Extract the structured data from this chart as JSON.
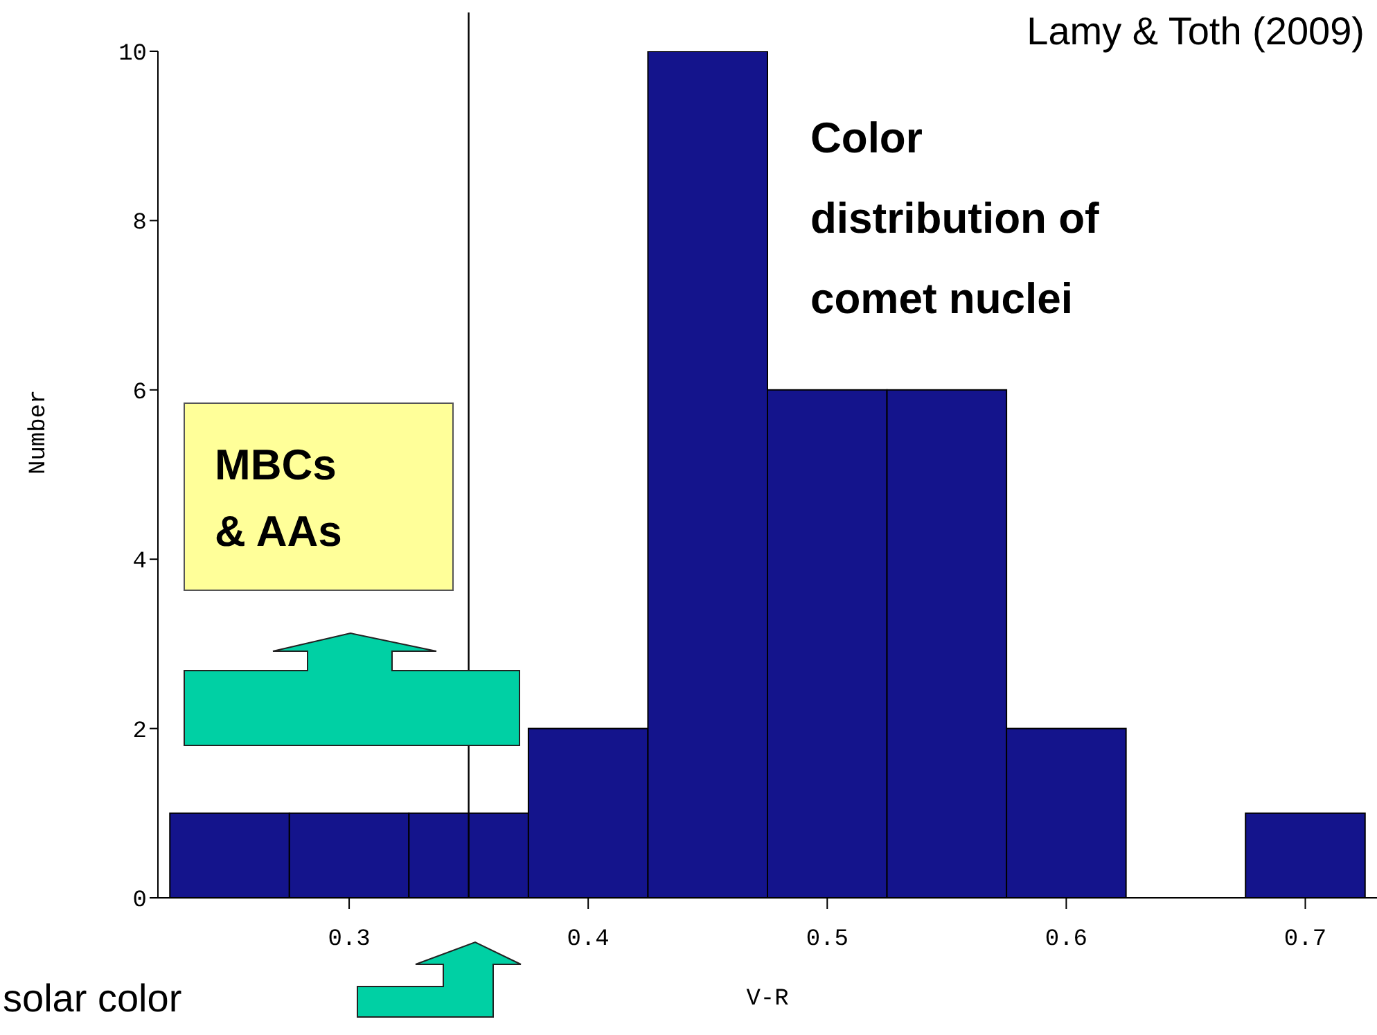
{
  "chart_data": {
    "type": "histogram",
    "xlabel": "V-R",
    "ylabel": "Number",
    "bins": [
      0.225,
      0.275,
      0.325,
      0.375,
      0.425,
      0.475,
      0.525,
      0.575,
      0.625,
      0.675,
      0.725
    ],
    "values": [
      1,
      1,
      1,
      2,
      10,
      6,
      6,
      2,
      0,
      1
    ],
    "color": "#14148c",
    "xlim": [
      0.22,
      0.73
    ],
    "xticks": [
      0.3,
      0.4,
      0.5,
      0.6,
      0.7
    ],
    "ylim": [
      0,
      10
    ],
    "yticks": [
      0,
      2,
      4,
      6,
      8,
      10
    ],
    "grid": false,
    "legend": false,
    "ref_lines": [
      {
        "axis": "x",
        "value": 0.35,
        "label": "solar color",
        "color": "#000000"
      }
    ],
    "annotations": [
      "Lamy & Toth (2009)",
      "Color distribution of comet nuclei",
      "MBCs & AAs"
    ]
  }
}
